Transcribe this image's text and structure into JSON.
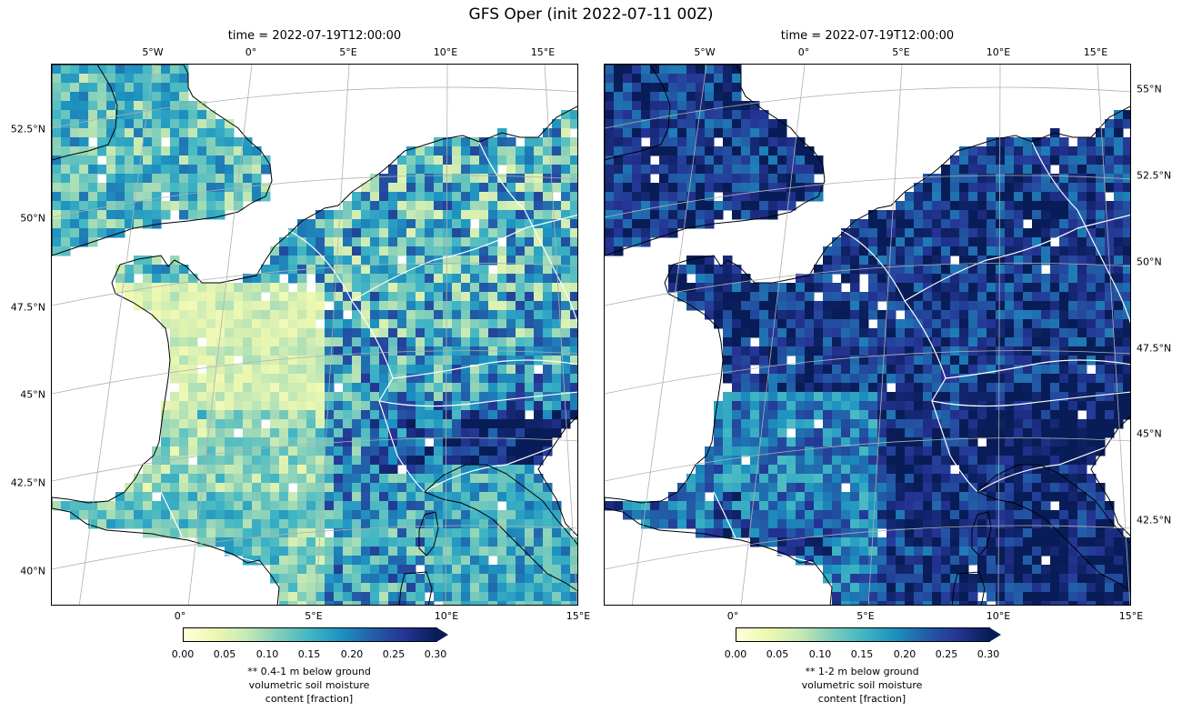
{
  "figure": {
    "title": "GFS Oper (init 2022-07-11 00Z)"
  },
  "panels": [
    {
      "id": "left",
      "title": "time = 2022-07-19T12:00:00",
      "top_ticks": [
        "5°W",
        "0°",
        "5°E",
        "10°E",
        "15°E"
      ],
      "left_ticks": [
        "52.5°N",
        "50°N",
        "47.5°N",
        "45°N",
        "42.5°N",
        "40°N"
      ],
      "bottom_ticks": [
        "0°",
        "5°E",
        "10°E",
        "15°E"
      ],
      "colorbar": {
        "ticks": [
          "0.00",
          "0.05",
          "0.10",
          "0.15",
          "0.20",
          "0.25",
          "0.30"
        ],
        "label_lines": [
          "** 0.4-1 m below ground",
          "volumetric soil moisture",
          "content [fraction]"
        ]
      },
      "moisture_profile": "dry"
    },
    {
      "id": "right",
      "title": "time = 2022-07-19T12:00:00",
      "top_ticks": [
        "5°W",
        "0°",
        "5°E",
        "10°E",
        "15°E"
      ],
      "right_ticks": [
        "55°N",
        "52.5°N",
        "50°N",
        "47.5°N",
        "45°N",
        "42.5°N"
      ],
      "bottom_ticks": [
        "0°",
        "5°E",
        "10°E",
        "15°E"
      ],
      "colorbar": {
        "ticks": [
          "0.00",
          "0.05",
          "0.10",
          "0.15",
          "0.20",
          "0.25",
          "0.30"
        ],
        "label_lines": [
          "** 1-2 m below ground",
          "volumetric soil moisture",
          "content [fraction]"
        ]
      },
      "moisture_profile": "wet"
    }
  ],
  "colormap": {
    "name": "YlGnBu",
    "range": [
      0.0,
      0.3
    ],
    "extend": "max",
    "stops": [
      "#ffffd9",
      "#edf8b1",
      "#c7e9b4",
      "#7fcdbb",
      "#41b6c4",
      "#1d91c0",
      "#225ea8",
      "#253494",
      "#081d58"
    ]
  },
  "style": {
    "coastline_color": "#000000",
    "border_color": "#ffffff",
    "gridline_color": "#b0b0b0",
    "ocean_color": "#ffffff"
  }
}
